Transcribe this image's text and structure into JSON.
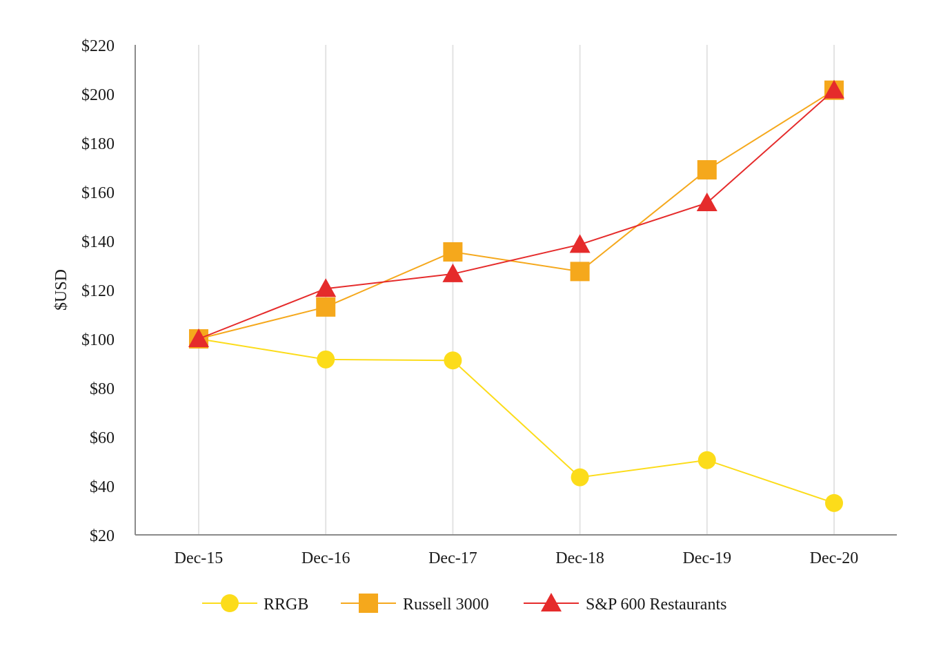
{
  "chart_data": {
    "type": "line",
    "title": "",
    "xlabel": "",
    "ylabel": "$USD",
    "categories": [
      "Dec-15",
      "Dec-16",
      "Dec-17",
      "Dec-18",
      "Dec-19",
      "Dec-20"
    ],
    "ylim": [
      20,
      220
    ],
    "yticks": [
      20,
      40,
      60,
      80,
      100,
      120,
      140,
      160,
      180,
      200,
      220
    ],
    "ytick_labels": [
      "$20",
      "$40",
      "$60",
      "$80",
      "$100",
      "$120",
      "$140",
      "$160",
      "$180",
      "$200",
      "$220"
    ],
    "grid": "vertical",
    "legend_position": "bottom-center",
    "series": [
      {
        "name": "RRGB",
        "marker": "circle",
        "color": "#FCDC1A",
        "values": [
          100,
          91.6,
          91.2,
          43.5,
          50.5,
          33
        ]
      },
      {
        "name": "Russell 3000",
        "marker": "square",
        "color": "#F5A81C",
        "values": [
          100,
          113,
          135.5,
          127.5,
          169,
          201.5
        ]
      },
      {
        "name": "S&P 600 Restaurants",
        "marker": "triangle",
        "color": "#E52B2B",
        "values": [
          100,
          120.5,
          126.5,
          138.5,
          155.5,
          201.5
        ]
      }
    ]
  }
}
